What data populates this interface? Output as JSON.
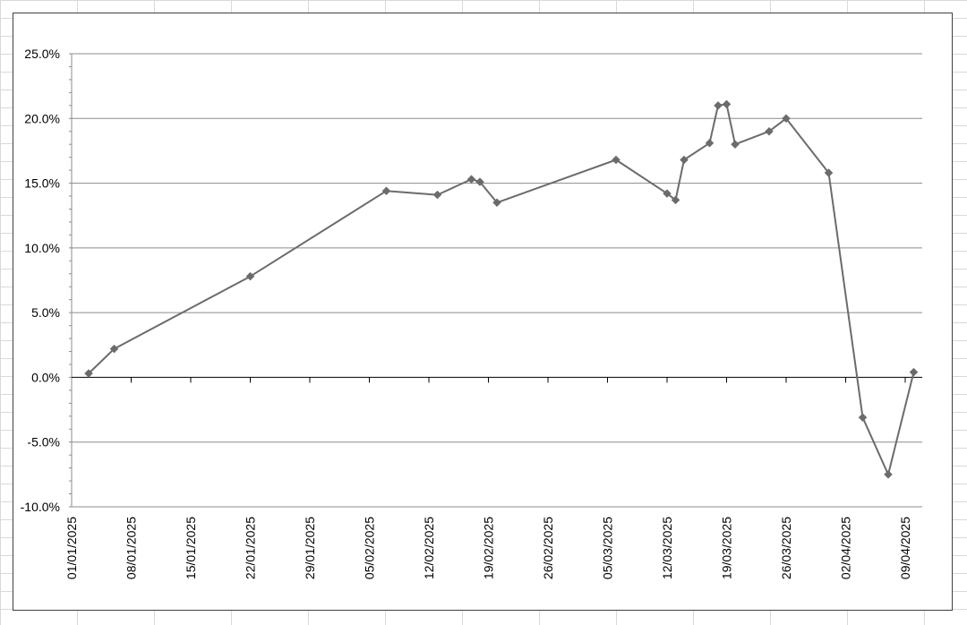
{
  "chart_data": {
    "type": "line",
    "title": "",
    "xlabel": "",
    "ylabel": "",
    "x_axis": {
      "type": "date",
      "range": [
        "2025-01-01",
        "2025-04-11"
      ],
      "tick_labels": [
        "01/01/2025",
        "08/01/2025",
        "15/01/2025",
        "22/01/2025",
        "29/01/2025",
        "05/02/2025",
        "12/02/2025",
        "19/02/2025",
        "26/02/2025",
        "05/03/2025",
        "12/03/2025",
        "19/03/2025",
        "26/03/2025",
        "02/04/2025",
        "09/04/2025"
      ],
      "tick_dates": [
        "2025-01-01",
        "2025-01-08",
        "2025-01-15",
        "2025-01-22",
        "2025-01-29",
        "2025-02-05",
        "2025-02-12",
        "2025-02-19",
        "2025-02-26",
        "2025-03-05",
        "2025-03-12",
        "2025-03-19",
        "2025-03-26",
        "2025-04-02",
        "2025-04-09"
      ]
    },
    "y_axis": {
      "ylim": [
        -10,
        25
      ],
      "tick_values": [
        25,
        20,
        15,
        10,
        5,
        0,
        -5,
        -10
      ],
      "tick_labels": [
        "25.0%",
        "20.0%",
        "15.0%",
        "10.0%",
        "5.0%",
        "0.0%",
        "-5.0%",
        "-10.0%"
      ]
    },
    "grid": true,
    "legend": "none",
    "series": [
      {
        "color": "#6b6b6b",
        "marker": "diamond",
        "points": [
          {
            "x": "2025-01-03",
            "y": 0.3
          },
          {
            "x": "2025-01-06",
            "y": 2.2
          },
          {
            "x": "2025-01-22",
            "y": 7.8
          },
          {
            "x": "2025-02-07",
            "y": 14.4
          },
          {
            "x": "2025-02-13",
            "y": 14.1
          },
          {
            "x": "2025-02-17",
            "y": 15.3
          },
          {
            "x": "2025-02-18",
            "y": 15.1
          },
          {
            "x": "2025-02-20",
            "y": 13.5
          },
          {
            "x": "2025-03-06",
            "y": 16.8
          },
          {
            "x": "2025-03-12",
            "y": 14.2
          },
          {
            "x": "2025-03-13",
            "y": 13.7
          },
          {
            "x": "2025-03-14",
            "y": 16.8
          },
          {
            "x": "2025-03-17",
            "y": 18.1
          },
          {
            "x": "2025-03-18",
            "y": 21.0
          },
          {
            "x": "2025-03-19",
            "y": 21.1
          },
          {
            "x": "2025-03-20",
            "y": 18.0
          },
          {
            "x": "2025-03-24",
            "y": 19.0
          },
          {
            "x": "2025-03-26",
            "y": 20.0
          },
          {
            "x": "2025-03-31",
            "y": 15.8
          },
          {
            "x": "2025-04-04",
            "y": -3.1
          },
          {
            "x": "2025-04-07",
            "y": -7.5
          },
          {
            "x": "2025-04-10",
            "y": 0.4
          }
        ]
      }
    ]
  }
}
